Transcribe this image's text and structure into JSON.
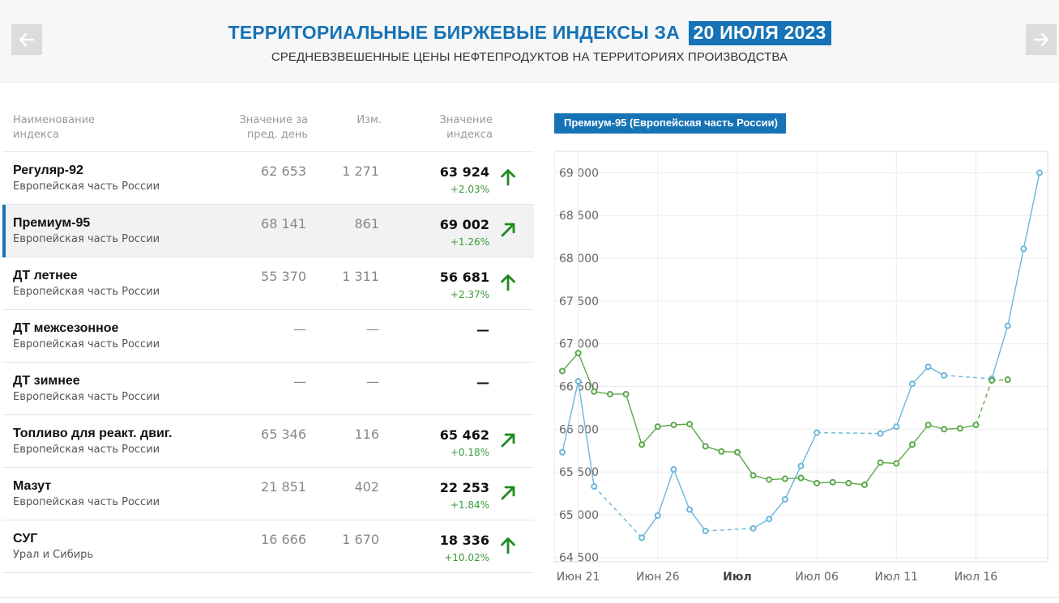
{
  "header": {
    "title": "ТЕРРИТОРИАЛЬНЫЕ БИРЖЕВЫЕ ИНДЕКСЫ ЗА",
    "date": "20 ИЮЛЯ 2023",
    "subtitle": "СРЕДНЕВЗВЕШЕННЫЕ ЦЕНЫ НЕФТЕПРОДУКТОВ НА ТЕРРИТОРИЯХ ПРОИЗВОДСТВА",
    "prev_icon": "arrow-left-icon",
    "next_icon": "arrow-right-icon"
  },
  "table": {
    "headers": {
      "name_1": "Наименование",
      "name_2": "индекса",
      "prev_1": "Значение за",
      "prev_2": "пред. день",
      "change": "Изм.",
      "value_1": "Значение",
      "value_2": "индекса"
    },
    "rows": [
      {
        "name": "Регуляр-92",
        "region": "Европейская часть России",
        "prev": "62 653",
        "change": "1 271",
        "value": "63 924",
        "pct": "+2.03%",
        "arrow": "up"
      },
      {
        "name": "Премиум-95",
        "region": "Европейская часть России",
        "prev": "68 141",
        "change": "861",
        "value": "69 002",
        "pct": "+1.26%",
        "arrow": "up-right"
      },
      {
        "name": "ДТ летнее",
        "region": "Европейская часть России",
        "prev": "55 370",
        "change": "1 311",
        "value": "56 681",
        "pct": "+2.37%",
        "arrow": "up"
      },
      {
        "name": "ДТ межсезонное",
        "region": "Европейская часть России",
        "prev": "—",
        "change": "—",
        "value": "—",
        "pct": "",
        "arrow": "none"
      },
      {
        "name": "ДТ зимнее",
        "region": "Европейская часть России",
        "prev": "—",
        "change": "—",
        "value": "—",
        "pct": "",
        "arrow": "none"
      },
      {
        "name": "Топливо для реакт. двиг.",
        "region": "Европейская часть России",
        "prev": "65 346",
        "change": "116",
        "value": "65 462",
        "pct": "+0.18%",
        "arrow": "up-right"
      },
      {
        "name": "Мазут",
        "region": "Европейская часть России",
        "prev": "21 851",
        "change": "402",
        "value": "22 253",
        "pct": "+1.84%",
        "arrow": "up-right"
      },
      {
        "name": "СУГ",
        "region": "Урал и Сибирь",
        "prev": "16 666",
        "change": "1 670",
        "value": "18 336",
        "pct": "+10.02%",
        "arrow": "up"
      }
    ]
  },
  "colors": {
    "brand": "#1673b6",
    "up_arrow": "#1f8a1f",
    "series_blue": "#6ab7dc",
    "series_green": "#5aa84a"
  },
  "chart_data": {
    "type": "line",
    "title": "Премиум-95 (Европейская часть России)",
    "xlabel": "",
    "ylabel": "",
    "grid": true,
    "legend": "none",
    "x_ticks": [
      {
        "date": "2023-06-21",
        "label": "Июн 21",
        "bold": false
      },
      {
        "date": "2023-06-26",
        "label": "Июн 26",
        "bold": false
      },
      {
        "date": "2023-07-01",
        "label": "Июл",
        "bold": true
      },
      {
        "date": "2023-07-06",
        "label": "Июл 06",
        "bold": false
      },
      {
        "date": "2023-07-11",
        "label": "Июл 11",
        "bold": false
      },
      {
        "date": "2023-07-16",
        "label": "Июл 16",
        "bold": false
      }
    ],
    "y_ticks": [
      64500,
      65000,
      65500,
      66000,
      66500,
      67000,
      67500,
      68000,
      68500,
      69000
    ],
    "y_tick_labels": [
      "64 500",
      "65 000",
      "65 500",
      "66 000",
      "66 500",
      "67 000",
      "67 500",
      "68 000",
      "68 500",
      "69 000"
    ],
    "xlim": [
      "2023-06-20",
      "2023-07-20"
    ],
    "ylim": [
      64450,
      69250
    ],
    "series": [
      {
        "color": "#6ab7dc",
        "points": [
          {
            "x": "2023-06-20",
            "y": 65730
          },
          {
            "x": "2023-06-21",
            "y": 66560
          },
          {
            "x": "2023-06-22",
            "y": 65330
          },
          {
            "x": "2023-06-25",
            "y": 64730,
            "gap_before": true
          },
          {
            "x": "2023-06-26",
            "y": 64990
          },
          {
            "x": "2023-06-27",
            "y": 65530
          },
          {
            "x": "2023-06-28",
            "y": 65060
          },
          {
            "x": "2023-06-29",
            "y": 64810
          },
          {
            "x": "2023-07-02",
            "y": 64840,
            "gap_before": true
          },
          {
            "x": "2023-07-03",
            "y": 64950
          },
          {
            "x": "2023-07-04",
            "y": 65180
          },
          {
            "x": "2023-07-05",
            "y": 65570
          },
          {
            "x": "2023-07-06",
            "y": 65960
          },
          {
            "x": "2023-07-10",
            "y": 65950,
            "gap_before": true
          },
          {
            "x": "2023-07-11",
            "y": 66030
          },
          {
            "x": "2023-07-12",
            "y": 66530
          },
          {
            "x": "2023-07-13",
            "y": 66730
          },
          {
            "x": "2023-07-14",
            "y": 66630
          },
          {
            "x": "2023-07-17",
            "y": 66590,
            "gap_before": true
          },
          {
            "x": "2023-07-18",
            "y": 67210
          },
          {
            "x": "2023-07-19",
            "y": 68110
          },
          {
            "x": "2023-07-20",
            "y": 69000
          }
        ]
      },
      {
        "color": "#5aa84a",
        "points": [
          {
            "x": "2023-06-20",
            "y": 66680
          },
          {
            "x": "2023-06-21",
            "y": 66890
          },
          {
            "x": "2023-06-22",
            "y": 66440
          },
          {
            "x": "2023-06-23",
            "y": 66410
          },
          {
            "x": "2023-06-24",
            "y": 66410
          },
          {
            "x": "2023-06-25",
            "y": 65820
          },
          {
            "x": "2023-06-26",
            "y": 66030
          },
          {
            "x": "2023-06-27",
            "y": 66050
          },
          {
            "x": "2023-06-28",
            "y": 66060
          },
          {
            "x": "2023-06-29",
            "y": 65800
          },
          {
            "x": "2023-06-30",
            "y": 65740
          },
          {
            "x": "2023-07-01",
            "y": 65730
          },
          {
            "x": "2023-07-02",
            "y": 65460
          },
          {
            "x": "2023-07-03",
            "y": 65410
          },
          {
            "x": "2023-07-04",
            "y": 65420
          },
          {
            "x": "2023-07-05",
            "y": 65430
          },
          {
            "x": "2023-07-06",
            "y": 65370
          },
          {
            "x": "2023-07-07",
            "y": 65380
          },
          {
            "x": "2023-07-08",
            "y": 65370
          },
          {
            "x": "2023-07-09",
            "y": 65350
          },
          {
            "x": "2023-07-10",
            "y": 65610
          },
          {
            "x": "2023-07-11",
            "y": 65600
          },
          {
            "x": "2023-07-12",
            "y": 65820
          },
          {
            "x": "2023-07-13",
            "y": 66050
          },
          {
            "x": "2023-07-14",
            "y": 66000
          },
          {
            "x": "2023-07-15",
            "y": 66010
          },
          {
            "x": "2023-07-16",
            "y": 66050
          },
          {
            "x": "2023-07-17",
            "y": 66570,
            "gap_before": true
          },
          {
            "x": "2023-07-18",
            "y": 66580,
            "gap_before": true
          }
        ]
      }
    ]
  }
}
